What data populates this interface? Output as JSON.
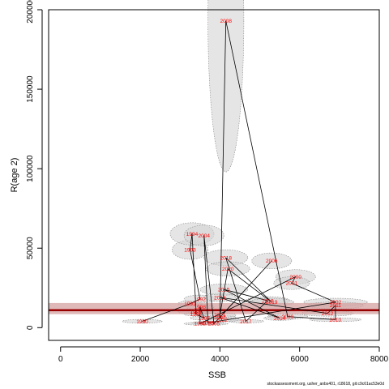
{
  "chart_data": {
    "type": "scatter",
    "title": "",
    "xlabel": "SSB",
    "ylabel": "R(age 2)",
    "xlim": [
      -300,
      8000
    ],
    "ylim": [
      -8000,
      200000
    ],
    "xticks": [
      "0",
      "2000",
      "4000",
      "6000",
      "8000"
    ],
    "yticks": [
      "0",
      "50000",
      "100000",
      "150000",
      "200000"
    ],
    "grid": false,
    "reference_line": {
      "y": 11000,
      "band": [
        8500,
        15500
      ]
    },
    "colors": {
      "reference_line": "#990000",
      "reference_band": "#d4a0a0",
      "ellipse_fill": "#d3d3d3",
      "ellipse_stroke": "#888888",
      "year_label": "#ff0000",
      "path": "#000000"
    },
    "series": [
      {
        "values": [
          {
            "year": "1990",
            "x": 2050,
            "y": 4000,
            "sx": 500,
            "sy": 1200
          },
          {
            "year": "1991",
            "x": 3250,
            "y": 15000,
            "sx": 300,
            "sy": 2000
          },
          {
            "year": "1992",
            "x": 3500,
            "y": 18000,
            "sx": 400,
            "sy": 2500
          },
          {
            "year": "1993",
            "x": 3250,
            "y": 49000,
            "sx": 450,
            "sy": 6000
          },
          {
            "year": "1994",
            "x": 3300,
            "y": 59000,
            "sx": 550,
            "sy": 7000
          },
          {
            "year": "1995",
            "x": 3400,
            "y": 10000,
            "sx": 450,
            "sy": 1500
          },
          {
            "year": "1996",
            "x": 3400,
            "y": 8500,
            "sx": 300,
            "sy": 1200
          },
          {
            "year": "1997",
            "x": 3600,
            "y": 6000,
            "sx": 350,
            "sy": 1300
          },
          {
            "year": "1998",
            "x": 3500,
            "y": 13000,
            "sx": 350,
            "sy": 1800
          },
          {
            "year": "1999",
            "x": 3500,
            "y": 2500,
            "sx": 400,
            "sy": 900
          },
          {
            "year": "2000",
            "x": 5900,
            "y": 32000,
            "sx": 500,
            "sy": 4500
          },
          {
            "year": "2001",
            "x": 5800,
            "y": 28000,
            "sx": 450,
            "sy": 4000
          },
          {
            "year": "2002",
            "x": 6900,
            "y": 16000,
            "sx": 800,
            "sy": 2500
          },
          {
            "year": "2003",
            "x": 3700,
            "y": 3000,
            "sx": 400,
            "sy": 1000
          },
          {
            "year": "2004",
            "x": 3600,
            "y": 58000,
            "sx": 500,
            "sy": 6500
          },
          {
            "year": "2005",
            "x": 3850,
            "y": 2500,
            "sx": 350,
            "sy": 900
          },
          {
            "year": "2006",
            "x": 5300,
            "y": 42000,
            "sx": 500,
            "sy": 5000
          },
          {
            "year": "2007",
            "x": 4000,
            "y": 6500,
            "sx": 400,
            "sy": 1300
          },
          {
            "year": "2008",
            "x": 4150,
            "y": 193000,
            "sx": 450,
            "sy": 95000
          },
          {
            "year": "2009",
            "x": 5700,
            "y": 7000,
            "sx": 500,
            "sy": 1600
          },
          {
            "year": "2010",
            "x": 6900,
            "y": 5000,
            "sx": 650,
            "sy": 1200
          },
          {
            "year": "2011",
            "x": 6900,
            "y": 14000,
            "sx": 700,
            "sy": 2200
          },
          {
            "year": "2012",
            "x": 6700,
            "y": 9000,
            "sx": 650,
            "sy": 1800
          },
          {
            "year": "2013",
            "x": 4000,
            "y": 19000,
            "sx": 400,
            "sy": 2500
          },
          {
            "year": "2014",
            "x": 5500,
            "y": 6000,
            "sx": 400,
            "sy": 1400
          },
          {
            "year": "2015",
            "x": 4100,
            "y": 24000,
            "sx": 600,
            "sy": 3500
          },
          {
            "year": "2016",
            "x": 5200,
            "y": 17000,
            "sx": 550,
            "sy": 2500
          },
          {
            "year": "2017",
            "x": 4650,
            "y": 4000,
            "sx": 450,
            "sy": 1000
          },
          {
            "year": "2018",
            "x": 4150,
            "y": 44000,
            "sx": 550,
            "sy": 5000
          },
          {
            "year": "2019",
            "x": 5300,
            "y": 16000,
            "sx": 550,
            "sy": 2500
          },
          {
            "year": "2020",
            "x": 4200,
            "y": 37000,
            "sx": 550,
            "sy": 4500
          },
          {
            "year": "2021",
            "x": 4000,
            "y": 8000,
            "sx": 400,
            "sy": 1500
          },
          {
            "year": "2022",
            "x": 4050,
            "y": 5000,
            "sx": 450,
            "sy": 1200
          }
        ]
      }
    ],
    "path_order": [
      "1990",
      "1991",
      "1992",
      "1993",
      "1994",
      "1995",
      "1996",
      "1997",
      "1998",
      "1999",
      "2000",
      "2001",
      "2002",
      "2003",
      "2004",
      "2005",
      "2006",
      "2007",
      "2008",
      "2009",
      "2010",
      "2011",
      "2012",
      "2013",
      "2014",
      "2015",
      "2016",
      "2017",
      "2018",
      "2019",
      "2020",
      "2021",
      "2022"
    ],
    "footer": "stockassessment.org, usher_anbs401, r18618, git:c9c61ac53e0d"
  }
}
